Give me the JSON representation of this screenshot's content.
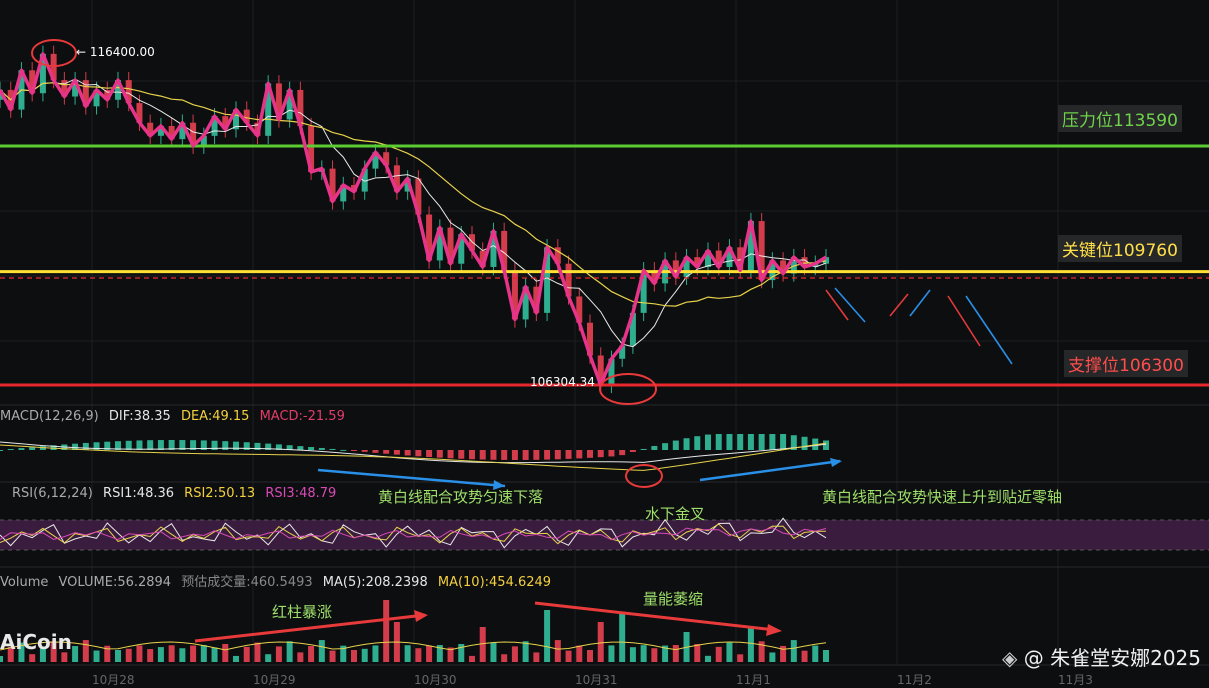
{
  "chart_data": {
    "type": "candlestick",
    "levels": {
      "resistance": {
        "label": "压力位113590",
        "value": 113590,
        "color": "#5ccc33"
      },
      "key": {
        "label": "关键位109760",
        "value": 109760,
        "color": "#ffe033"
      },
      "support": {
        "label": "支撑位106300",
        "value": 106300,
        "color": "#e8282d"
      }
    },
    "price_high_label": "116400.00",
    "price_low_label": "106304.34",
    "close_path": [
      115300,
      114700,
      115900,
      115200,
      116400,
      115600,
      115100,
      115600,
      114800,
      115300,
      115000,
      115600,
      114900,
      114300,
      113900,
      114200,
      113800,
      114300,
      113600,
      113900,
      114500,
      114100,
      114700,
      114300,
      113900,
      115500,
      114400,
      115300,
      114200,
      112800,
      112900,
      111900,
      112400,
      112200,
      112900,
      113400,
      113000,
      112200,
      112600,
      111500,
      110100,
      111100,
      110000,
      110900,
      110400,
      109900,
      111000,
      109800,
      108300,
      109300,
      108500,
      110500,
      110000,
      109000,
      108200,
      107200,
      106304,
      107100,
      107500,
      108500,
      109800,
      109400,
      110100,
      109600,
      110200,
      109900,
      110400,
      109900,
      110500,
      109800,
      111300,
      109500,
      110100,
      109700,
      110200,
      109900,
      110000,
      110200
    ],
    "macd": {
      "label": "MACD(12,26,9)",
      "dif": "DIF:38.35",
      "dea": "DEA:49.15",
      "macd": "MACD:-21.59"
    },
    "rsi": {
      "label": "RSI(6,12,24)",
      "rsi1": "RSI1:48.36",
      "rsi2": "RSI2:50.13",
      "rsi3": "RSI3:48.79"
    },
    "volume": {
      "label": "Volume",
      "volume": "VOLUME:56.2894",
      "est": "预估成交量:460.5493",
      "ma5": "MA(5):208.2398",
      "ma10": "MA(10):454.6249"
    },
    "x_ticks": [
      "10月28",
      "10月29",
      "10月30",
      "10月31",
      "11月1",
      "11月2",
      "11月3"
    ]
  },
  "annotations": {
    "macd_down": "黄白线配合攻势匀速下落",
    "macd_up": "黄白线配合攻势快速上升到贴近零轴",
    "golden_cross": "水下金叉",
    "red_bars": "红柱暴涨",
    "volume_shrink": "量能萎缩"
  },
  "logo": "AiCoin",
  "watermark": "@ 朱雀堂安娜2025"
}
